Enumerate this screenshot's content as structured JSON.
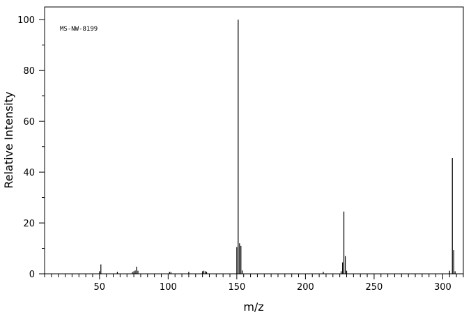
{
  "chart_data": {
    "type": "bar",
    "title": "",
    "annotation": "MS-NW-8199",
    "xlabel": "m/z",
    "ylabel": "Relative Intensity",
    "xlim": [
      10,
      315
    ],
    "ylim": [
      0,
      105
    ],
    "x_ticks": [
      50,
      100,
      150,
      200,
      250,
      300
    ],
    "y_ticks": [
      0,
      20,
      40,
      60,
      80,
      100
    ],
    "grid": false,
    "legend": "none",
    "bar_color": "#000000",
    "peaks": [
      {
        "mz": 50,
        "intensity": 1.0
      },
      {
        "mz": 51,
        "intensity": 3.7
      },
      {
        "mz": 63,
        "intensity": 0.8
      },
      {
        "mz": 74,
        "intensity": 0.7
      },
      {
        "mz": 75,
        "intensity": 1.0
      },
      {
        "mz": 76,
        "intensity": 1.3
      },
      {
        "mz": 77,
        "intensity": 2.8
      },
      {
        "mz": 78,
        "intensity": 1.2
      },
      {
        "mz": 101,
        "intensity": 0.8
      },
      {
        "mz": 102,
        "intensity": 0.7
      },
      {
        "mz": 115,
        "intensity": 0.8
      },
      {
        "mz": 125,
        "intensity": 1.0
      },
      {
        "mz": 126,
        "intensity": 1.2
      },
      {
        "mz": 127,
        "intensity": 1.0
      },
      {
        "mz": 128,
        "intensity": 0.8
      },
      {
        "mz": 150,
        "intensity": 10.5
      },
      {
        "mz": 151,
        "intensity": 100.0
      },
      {
        "mz": 152,
        "intensity": 12.0
      },
      {
        "mz": 153,
        "intensity": 11.0
      },
      {
        "mz": 154,
        "intensity": 1.3
      },
      {
        "mz": 213,
        "intensity": 0.8
      },
      {
        "mz": 226,
        "intensity": 1.0
      },
      {
        "mz": 227,
        "intensity": 4.5
      },
      {
        "mz": 228,
        "intensity": 24.5
      },
      {
        "mz": 229,
        "intensity": 7.0
      },
      {
        "mz": 230,
        "intensity": 1.2
      },
      {
        "mz": 305,
        "intensity": 1.2
      },
      {
        "mz": 307,
        "intensity": 45.5
      },
      {
        "mz": 308,
        "intensity": 9.3
      },
      {
        "mz": 309,
        "intensity": 1.0
      }
    ]
  }
}
